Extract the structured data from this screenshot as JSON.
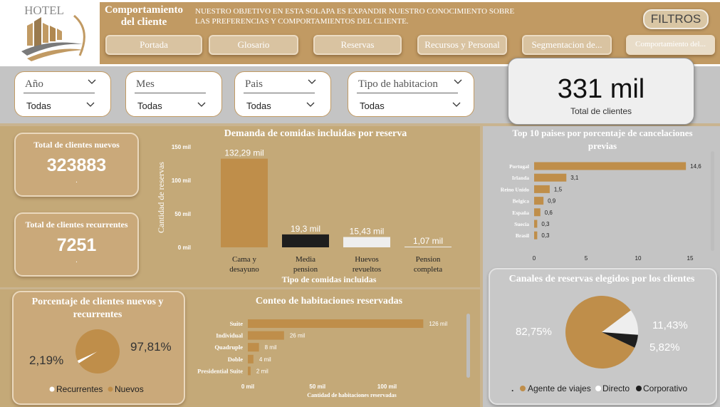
{
  "logo_text": "HOTEL",
  "header": {
    "title": "Comportamiento del cliente",
    "description": "NUESTRO OBJETIVO EN ESTA SOLAPA ES EXPANDIR NUESTRO CONOCIMIENTO SOBRE LAS PREFERENCIAS Y COMPORTAMIENTOS DEL CLIENTE.",
    "filtros_label": "FILTROS",
    "nav": [
      "Portada",
      "Glosario",
      "Reservas",
      "Recursos y Personal",
      "Segmentacion de...",
      "Comportamiento del..."
    ]
  },
  "filters": [
    {
      "label": "Año",
      "value": "Todas"
    },
    {
      "label": "Mes",
      "value": "Todas"
    },
    {
      "label": "Pais",
      "value": "Todas"
    },
    {
      "label": "Tipo de habitacion",
      "value": "Todas"
    }
  ],
  "total_clientes": {
    "value": "331 mil",
    "label": "Total de clientes"
  },
  "kpis": {
    "nuevos": {
      "title": "Total de clientes nuevos",
      "value": "323883",
      "sub": "."
    },
    "recurrentes": {
      "title": "Total de clientes recurrentes",
      "value": "7251",
      "sub": "."
    }
  },
  "meals_chart": {
    "title": "Demanda de comidas incluidas por reserva",
    "ylabel": "Cantidad de reservas",
    "xlabel": "Tipo de comidas incluidas",
    "yticks": [
      "150 mil",
      "100 mil",
      "50 mil",
      "0 mil"
    ],
    "categories": [
      "Cama y desayuno",
      "Media pension",
      "Huevos revueltos",
      "Pension completa"
    ],
    "data_labels": [
      "132,29 mil",
      "19,3 mil",
      "15,43 mil",
      "1,07 mil"
    ]
  },
  "cancel_chart": {
    "title": "Top 10 paises por porcentaje de cancelaciones previas",
    "categories": [
      "Portugal",
      "Irlanda",
      "Reino Unido",
      "Belgica",
      "España",
      "Suecia",
      "Brasil"
    ],
    "data_labels": [
      "14,6",
      "3,1",
      "1,5",
      "0,9",
      "0,6",
      "0,3",
      "0,3"
    ],
    "xticks": [
      "0",
      "5",
      "10",
      "15"
    ]
  },
  "pie_clientes": {
    "title": "Porcentaje de clientes nuevos y recurrentes",
    "labels": [
      "2,19%",
      "97,81%"
    ],
    "legend": [
      "Recurrentes",
      "Nuevos"
    ]
  },
  "rooms_chart": {
    "title": "Conteo de habitaciones reservadas",
    "categories": [
      "Suite",
      "Individual",
      "Quadruple",
      "Doble",
      "Presidential Suite"
    ],
    "data_labels": [
      "126 mil",
      "26 mil",
      "8 mil",
      "4 mil",
      "2 mil"
    ],
    "xticks": [
      "0 mil",
      "50 mil",
      "100 mil"
    ],
    "xlabel": "Cantidad de habitaciones reservadas"
  },
  "pie_canales": {
    "title": "Canales de reservas elegidos por los clientes",
    "labels": [
      "82,75%",
      "11,43%",
      "5,82%"
    ],
    "legend_dot": ".",
    "legend": [
      "Agente de viajes",
      "Directo",
      "Corporativo"
    ]
  },
  "colors": {
    "gold": "#c19a63",
    "panel": "#c4a978",
    "bar_gold": "#bf8e4a",
    "black": "#1e1e1e",
    "light": "#eeeeee",
    "grey_panel": "#c4c4c4"
  },
  "chart_data": [
    {
      "type": "bar",
      "title": "Demanda de comidas incluidas por reserva",
      "xlabel": "Tipo de comidas incluidas",
      "ylabel": "Cantidad de reservas",
      "categories": [
        "Cama y desayuno",
        "Media pension",
        "Huevos revueltos",
        "Pension completa"
      ],
      "values": [
        132.29,
        19.3,
        15.43,
        1.07
      ],
      "unit": "mil",
      "ylim": [
        0,
        150
      ],
      "bar_colors": [
        "#bf8e4a",
        "#1e1e1e",
        "#eeeeee",
        "#eeeeee"
      ]
    },
    {
      "type": "bar",
      "orientation": "horizontal",
      "title": "Top 10 paises por porcentaje de cancelaciones previas",
      "categories": [
        "Portugal",
        "Irlanda",
        "Reino Unido",
        "Belgica",
        "España",
        "Suecia",
        "Brasil"
      ],
      "values": [
        14.6,
        3.1,
        1.5,
        0.9,
        0.6,
        0.3,
        0.3
      ],
      "xlim": [
        0,
        15
      ]
    },
    {
      "type": "pie",
      "title": "Porcentaje de clientes nuevos y recurrentes",
      "categories": [
        "Recurrentes",
        "Nuevos"
      ],
      "values": [
        2.19,
        97.81
      ],
      "colors": [
        "#ffffff",
        "#bf8e4a"
      ]
    },
    {
      "type": "bar",
      "orientation": "horizontal",
      "title": "Conteo de habitaciones reservadas",
      "xlabel": "Cantidad de habitaciones reservadas",
      "categories": [
        "Suite",
        "Individual",
        "Quadruple",
        "Doble",
        "Presidential Suite"
      ],
      "values": [
        126,
        26,
        8,
        4,
        2
      ],
      "unit": "mil",
      "xlim": [
        0,
        126
      ]
    },
    {
      "type": "pie",
      "title": "Canales de reservas elegidos por los clientes",
      "categories": [
        "Agente de viajes",
        "Directo",
        "Corporativo"
      ],
      "values": [
        82.75,
        11.43,
        5.82
      ],
      "colors": [
        "#bf8e4a",
        "#eeeeee",
        "#1e1e1e"
      ]
    }
  ]
}
